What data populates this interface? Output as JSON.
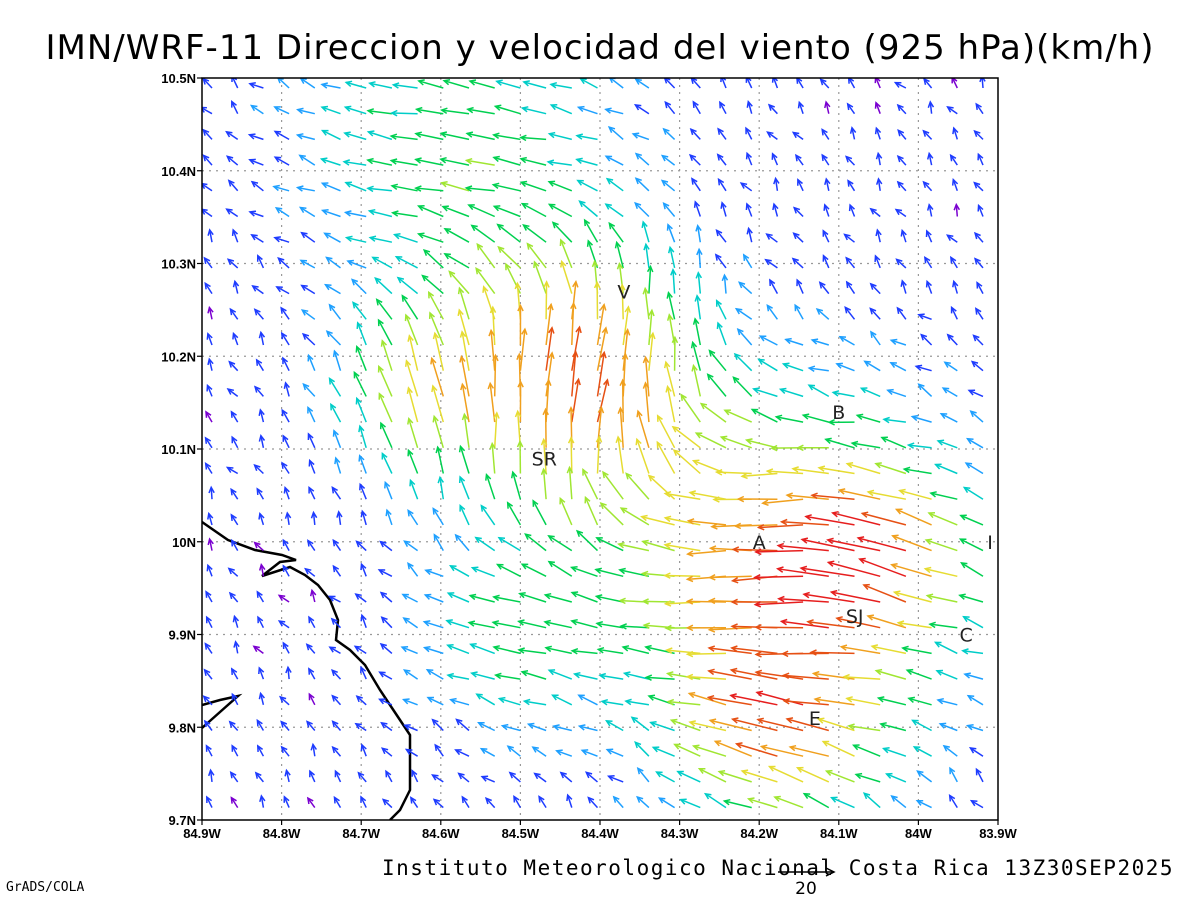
{
  "title": "IMN/WRF-11 Direccion y velocidad del viento (925 hPa)(km/h)",
  "footer": "Instituto Meteorologico Nacional Costa Rica 13Z30SEP2025",
  "credit": "GrADS/COLA",
  "reference_vector": {
    "label": "20",
    "speed": 20
  },
  "axes": {
    "x_ticks": [
      "84.9W",
      "84.8W",
      "84.7W",
      "84.6W",
      "84.5W",
      "84.4W",
      "84.3W",
      "84.2W",
      "84.1W",
      "84W",
      "83.9W"
    ],
    "y_ticks": [
      "10.5N",
      "10.4N",
      "10.3N",
      "10.2N",
      "10.1N",
      "10N",
      "9.9N",
      "9.8N",
      "9.7N"
    ],
    "lon_range": [
      -84.9,
      -83.9
    ],
    "lat_range": [
      9.7,
      10.5
    ]
  },
  "places": [
    {
      "label": "V",
      "lon": -84.37,
      "lat": 10.27
    },
    {
      "label": "B",
      "lon": -84.1,
      "lat": 10.14
    },
    {
      "label": "SR",
      "lon": -84.47,
      "lat": 10.09
    },
    {
      "label": "A",
      "lon": -84.2,
      "lat": 10.0
    },
    {
      "label": "I",
      "lon": -83.91,
      "lat": 10.0
    },
    {
      "label": "SJ",
      "lon": -84.08,
      "lat": 9.92
    },
    {
      "label": "C",
      "lon": -83.94,
      "lat": 9.9
    },
    {
      "label": "E",
      "lon": -84.13,
      "lat": 9.81
    }
  ],
  "colors": {
    "speed_scale": [
      "#7a00d0",
      "#1e3cff",
      "#1ea0ff",
      "#00cdc8",
      "#00d050",
      "#a0e632",
      "#e6dc32",
      "#f0a01e",
      "#e65014",
      "#e61e1e"
    ],
    "coastline": "#000000",
    "grid": "#999999"
  }
}
